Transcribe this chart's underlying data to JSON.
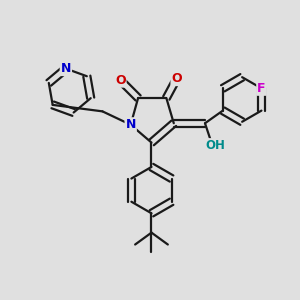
{
  "bg_color": "#e0e0e0",
  "bond_color": "#1a1a1a",
  "bond_width": 1.6,
  "atom_colors": {
    "N": "#0000cc",
    "O": "#cc0000",
    "F": "#cc00cc",
    "OH": "#008b8b",
    "C": "#1a1a1a"
  },
  "dbo": 0.12
}
